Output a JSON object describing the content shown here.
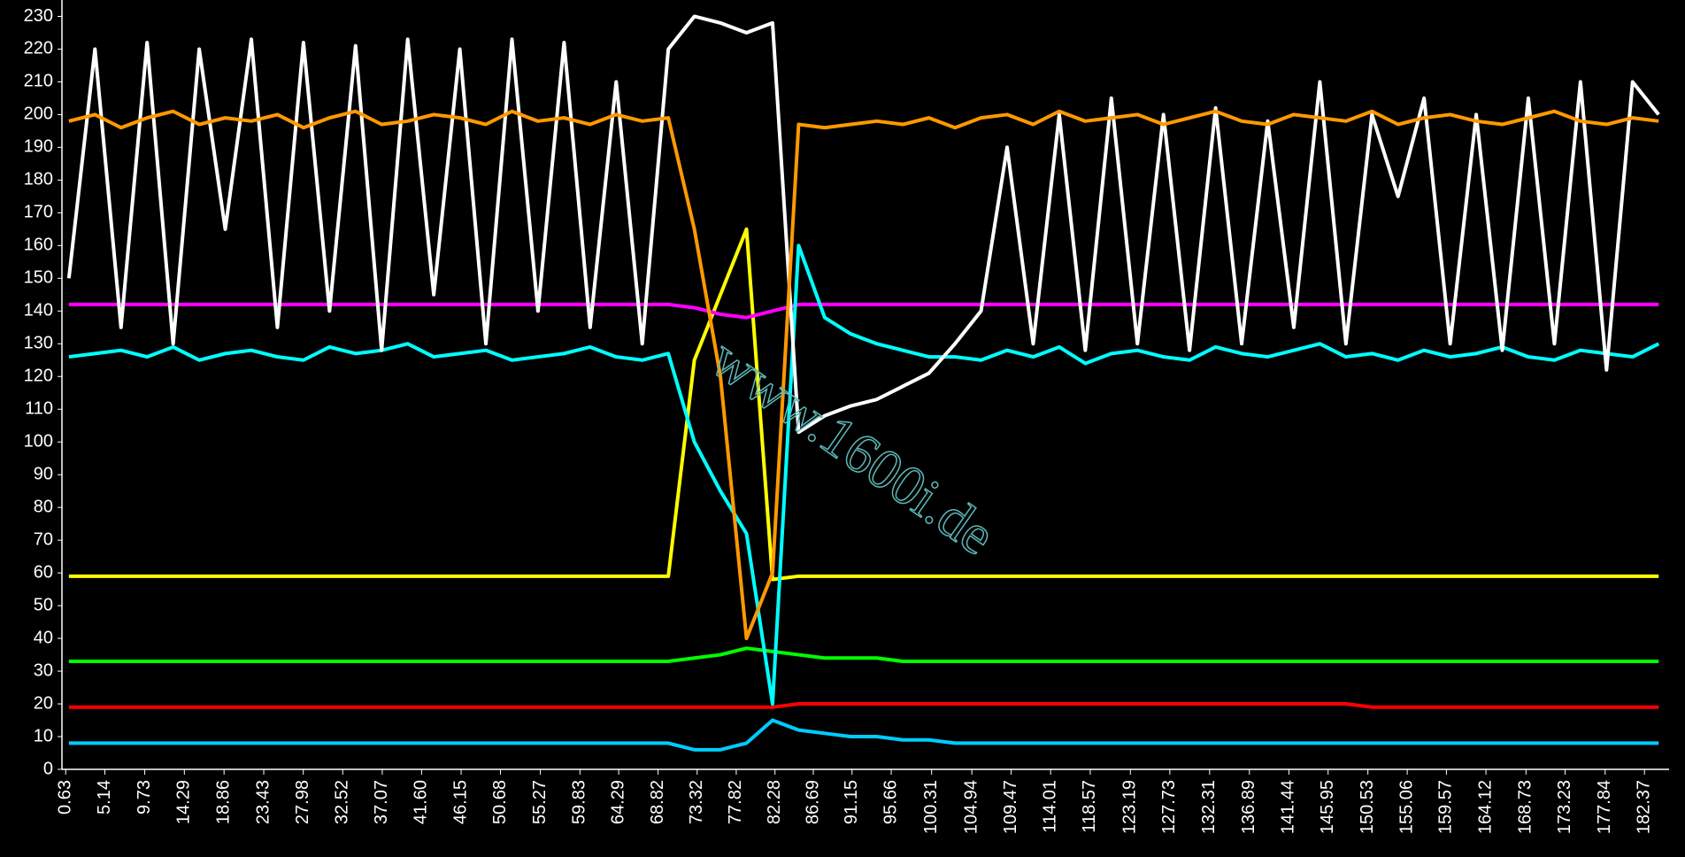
{
  "chart_data": {
    "type": "line",
    "watermark": "www.1600i.de",
    "x": [
      1,
      4,
      7,
      10,
      13,
      16,
      19,
      22,
      25,
      28,
      31,
      34,
      37,
      40,
      43,
      46,
      49,
      52,
      55,
      58,
      61,
      64,
      67,
      70,
      73,
      76,
      79,
      82,
      85,
      88,
      91,
      94,
      97,
      100,
      103,
      106,
      109,
      112,
      115,
      118,
      121,
      124,
      127,
      130,
      133,
      136,
      139,
      142,
      145,
      148,
      151,
      154,
      157,
      160,
      163,
      166,
      169,
      172,
      175,
      178,
      181,
      184
    ],
    "xlim": [
      0.2,
      185.2
    ],
    "xticks": [
      0.63,
      5.14,
      9.73,
      14.29,
      18.86,
      23.43,
      27.98,
      32.52,
      37.07,
      {
        "value": 41.6,
        "label": "41.60"
      },
      46.15,
      50.68,
      55.27,
      59.83,
      64.29,
      68.82,
      73.32,
      77.82,
      82.28,
      86.69,
      91.15,
      95.66,
      100.31,
      104.94,
      109.47,
      114.01,
      118.57,
      123.19,
      127.73,
      132.31,
      136.89,
      141.44,
      145.95,
      150.53,
      155.06,
      159.57,
      164.12,
      168.73,
      173.23,
      177.84,
      182.37
    ],
    "ylim": [
      0,
      235
    ],
    "yticks": [
      0,
      10,
      20,
      30,
      40,
      50,
      60,
      70,
      80,
      90,
      100,
      110,
      120,
      130,
      140,
      150,
      160,
      170,
      180,
      190,
      200,
      210,
      220,
      230
    ],
    "series": [
      {
        "color": "#00ccff",
        "values": [
          8,
          8,
          8,
          8,
          8,
          8,
          8,
          8,
          8,
          8,
          8,
          8,
          8,
          8,
          8,
          8,
          8,
          8,
          8,
          8,
          8,
          8,
          8,
          8,
          6,
          6,
          8,
          15,
          12,
          11,
          10,
          10,
          9,
          9,
          8,
          8,
          8,
          8,
          8,
          8,
          8,
          8,
          8,
          8,
          8,
          8,
          8,
          8,
          8,
          8,
          8,
          8,
          8,
          8,
          8,
          8,
          8,
          8,
          8,
          8,
          8,
          8
        ]
      },
      {
        "color": "#ff0000",
        "values": [
          19,
          19,
          19,
          19,
          19,
          19,
          19,
          19,
          19,
          19,
          19,
          19,
          19,
          19,
          19,
          19,
          19,
          19,
          19,
          19,
          19,
          19,
          19,
          19,
          19,
          19,
          19,
          19,
          20,
          20,
          20,
          20,
          20,
          20,
          20,
          20,
          20,
          20,
          20,
          20,
          20,
          20,
          20,
          20,
          20,
          20,
          20,
          20,
          20,
          20,
          19,
          19,
          19,
          19,
          19,
          19,
          19,
          19,
          19,
          19,
          19,
          19
        ]
      },
      {
        "color": "#00ff00",
        "values": [
          33,
          33,
          33,
          33,
          33,
          33,
          33,
          33,
          33,
          33,
          33,
          33,
          33,
          33,
          33,
          33,
          33,
          33,
          33,
          33,
          33,
          33,
          33,
          33,
          34,
          35,
          37,
          36,
          35,
          34,
          34,
          34,
          33,
          33,
          33,
          33,
          33,
          33,
          33,
          33,
          33,
          33,
          33,
          33,
          33,
          33,
          33,
          33,
          33,
          33,
          33,
          33,
          33,
          33,
          33,
          33,
          33,
          33,
          33,
          33,
          33,
          33
        ]
      },
      {
        "color": "#ffff00",
        "values": [
          59,
          59,
          59,
          59,
          59,
          59,
          59,
          59,
          59,
          59,
          59,
          59,
          59,
          59,
          59,
          59,
          59,
          59,
          59,
          59,
          59,
          59,
          59,
          59,
          125,
          145,
          165,
          58,
          59,
          59,
          59,
          59,
          59,
          59,
          59,
          59,
          59,
          59,
          59,
          59,
          59,
          59,
          59,
          59,
          59,
          59,
          59,
          59,
          59,
          59,
          59,
          59,
          59,
          59,
          59,
          59,
          59,
          59,
          59,
          59,
          59,
          59
        ]
      },
      {
        "color": "#ff00ff",
        "values": [
          142,
          142,
          142,
          142,
          142,
          142,
          142,
          142,
          142,
          142,
          142,
          142,
          142,
          142,
          142,
          142,
          142,
          142,
          142,
          142,
          142,
          142,
          142,
          142,
          141,
          139,
          138,
          140,
          142,
          142,
          142,
          142,
          142,
          142,
          142,
          142,
          142,
          142,
          142,
          142,
          142,
          142,
          142,
          142,
          142,
          142,
          142,
          142,
          142,
          142,
          142,
          142,
          142,
          142,
          142,
          142,
          142,
          142,
          142,
          142,
          142,
          142
        ]
      },
      {
        "color": "#00ffff",
        "values": [
          126,
          127,
          128,
          126,
          129,
          125,
          127,
          128,
          126,
          125,
          129,
          127,
          128,
          130,
          126,
          127,
          128,
          125,
          126,
          127,
          129,
          126,
          125,
          127,
          100,
          85,
          72,
          20,
          160,
          138,
          133,
          130,
          128,
          126,
          126,
          125,
          128,
          126,
          129,
          124,
          127,
          128,
          126,
          125,
          129,
          127,
          126,
          128,
          130,
          126,
          127,
          125,
          128,
          126,
          127,
          129,
          126,
          125,
          128,
          127,
          126,
          130
        ]
      },
      {
        "color": "#ffffff",
        "values": [
          150,
          220,
          135,
          222,
          130,
          220,
          165,
          223,
          135,
          222,
          140,
          221,
          128,
          223,
          145,
          220,
          130,
          223,
          140,
          222,
          135,
          210,
          130,
          220,
          230,
          228,
          225,
          228,
          103,
          108,
          111,
          113,
          117,
          121,
          130,
          140,
          190,
          130,
          200,
          128,
          205,
          130,
          200,
          128,
          202,
          130,
          198,
          135,
          210,
          130,
          200,
          175,
          205,
          130,
          200,
          128,
          205,
          130,
          210,
          122,
          210,
          200
        ]
      },
      {
        "color": "#ff9900",
        "values": [
          198,
          200,
          196,
          199,
          201,
          197,
          199,
          198,
          200,
          196,
          199,
          201,
          197,
          198,
          200,
          199,
          197,
          201,
          198,
          199,
          197,
          200,
          198,
          199,
          165,
          120,
          40,
          60,
          197,
          196,
          197,
          198,
          197,
          199,
          196,
          199,
          200,
          197,
          201,
          198,
          199,
          200,
          197,
          199,
          201,
          198,
          197,
          200,
          199,
          198,
          201,
          197,
          199,
          200,
          198,
          197,
          199,
          201,
          198,
          197,
          199,
          198
        ]
      }
    ]
  }
}
